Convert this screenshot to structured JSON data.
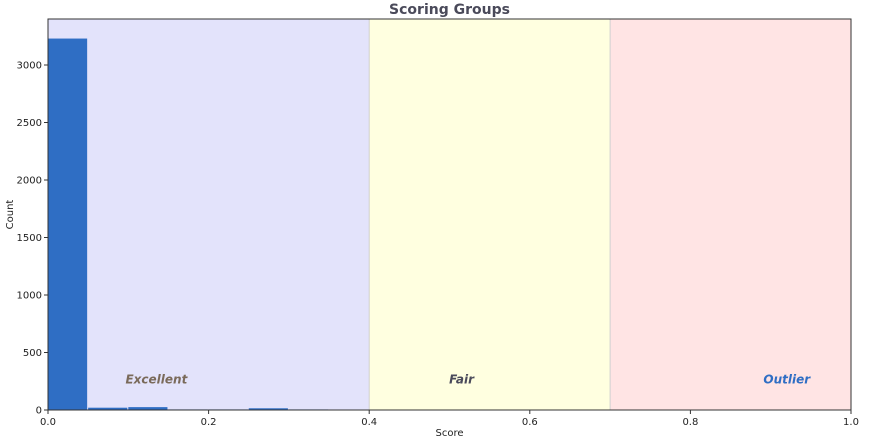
{
  "chart_data": {
    "type": "bar",
    "title": "Scoring Groups",
    "xlabel": "Score",
    "ylabel": "Count",
    "xlim": [
      0,
      1.0
    ],
    "ylim": [
      0,
      3400
    ],
    "xticks": [
      0.0,
      0.2,
      0.4,
      0.6,
      0.8,
      1.0
    ],
    "xtick_labels": [
      "0.0",
      "0.2",
      "0.4",
      "0.6",
      "0.8",
      "1.0"
    ],
    "yticks": [
      0,
      500,
      1000,
      1500,
      2000,
      2500,
      3000
    ],
    "ytick_labels": [
      "0",
      "500",
      "1000",
      "1500",
      "2000",
      "2500",
      "3000"
    ],
    "bin_width": 0.05,
    "bins": [
      {
        "x0": 0.0,
        "value": 3230
      },
      {
        "x0": 0.05,
        "value": 20
      },
      {
        "x0": 0.1,
        "value": 25
      },
      {
        "x0": 0.15,
        "value": 5
      },
      {
        "x0": 0.2,
        "value": 5
      },
      {
        "x0": 0.25,
        "value": 15
      },
      {
        "x0": 0.3,
        "value": 5
      }
    ],
    "bar_color": "#2f6ec4",
    "zones": [
      {
        "label": "Excellent",
        "x0": 0.0,
        "x1": 0.4,
        "fill": "#e3e3fb",
        "text_color": "#7a6a5a",
        "label_x": 0.135
      },
      {
        "label": "Fair",
        "x0": 0.4,
        "x1": 0.7,
        "fill": "#ffffe0",
        "text_color": "#4a4a5a",
        "label_x": 0.515
      },
      {
        "label": "Outlier",
        "x0": 0.7,
        "x1": 1.0,
        "fill": "#ffe4e4",
        "text_color": "#2f6ec4",
        "label_x": 0.92
      }
    ],
    "zone_label_y": 230,
    "grid": false
  }
}
